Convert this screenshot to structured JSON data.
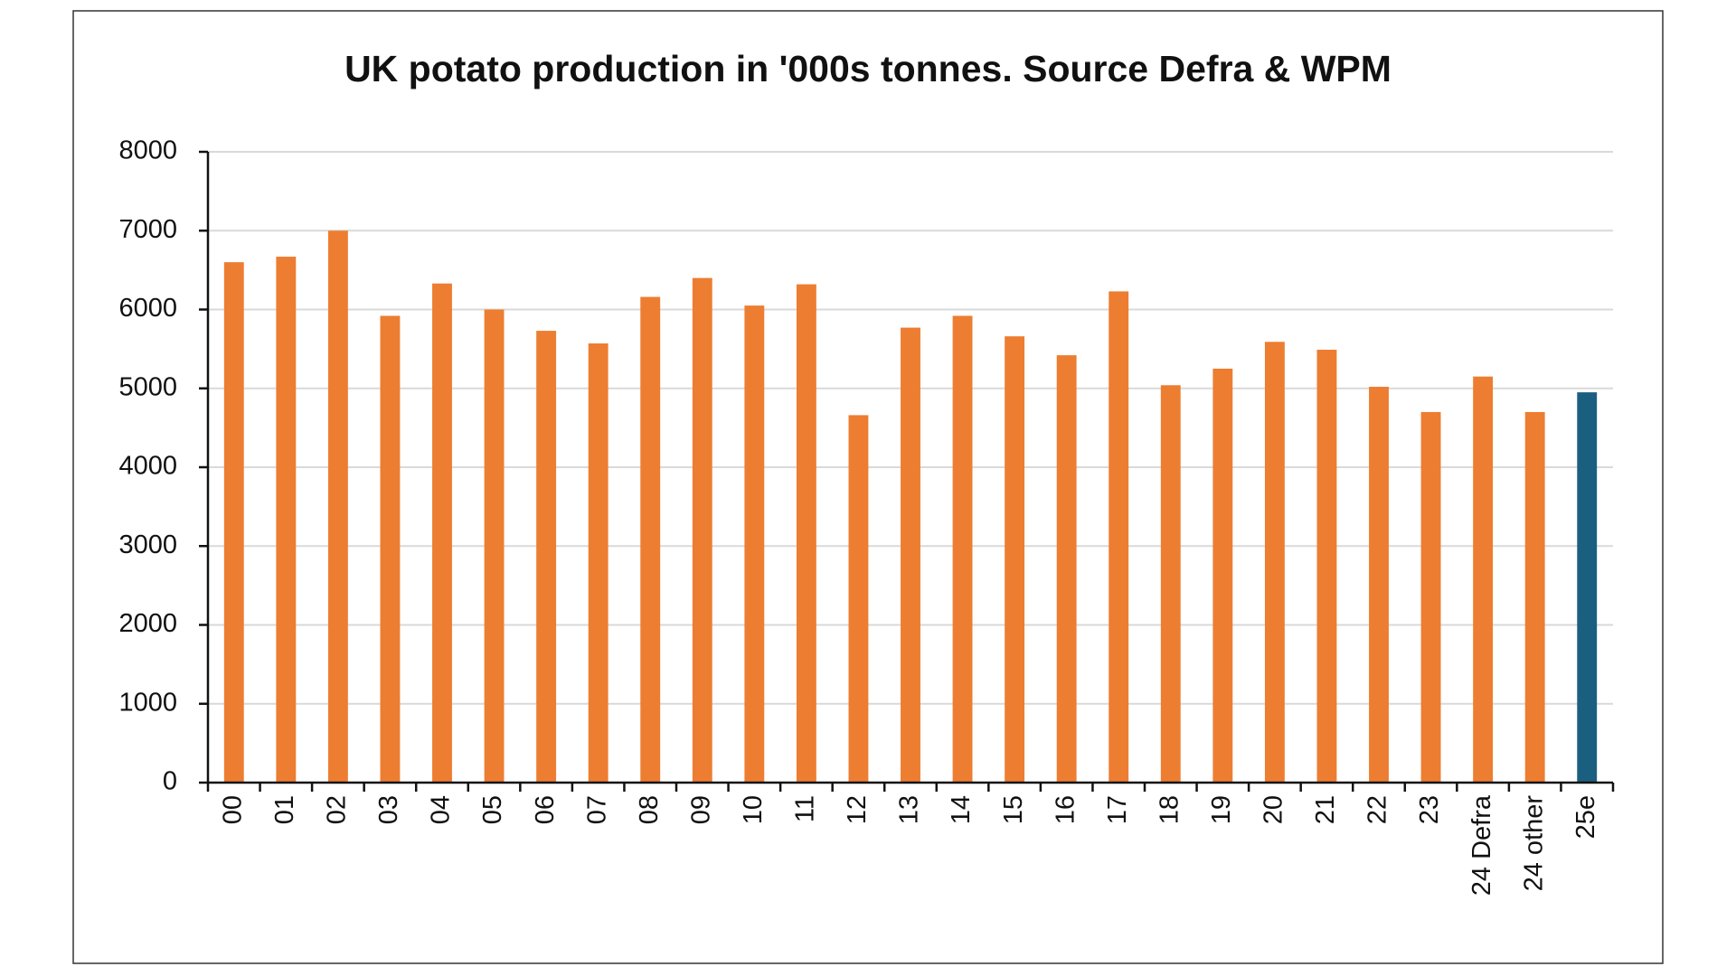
{
  "chart_data": {
    "type": "bar",
    "title": "UK potato production in '000s tonnes. Source Defra & WPM",
    "categories": [
      "00",
      "01",
      "02",
      "03",
      "04",
      "05",
      "06",
      "07",
      "08",
      "09",
      "10",
      "11",
      "12",
      "13",
      "14",
      "15",
      "16",
      "17",
      "18",
      "19",
      "20",
      "21",
      "22",
      "23",
      "24 Defra",
      "24 other",
      "25e"
    ],
    "values": [
      6600,
      6670,
      7000,
      5920,
      6330,
      6000,
      5730,
      5570,
      6160,
      6400,
      6050,
      6320,
      4660,
      5770,
      5920,
      5660,
      5420,
      6230,
      5040,
      5250,
      5590,
      5490,
      5020,
      4700,
      5150,
      4700,
      4950
    ],
    "colors": [
      "#ED7D31",
      "#ED7D31",
      "#ED7D31",
      "#ED7D31",
      "#ED7D31",
      "#ED7D31",
      "#ED7D31",
      "#ED7D31",
      "#ED7D31",
      "#ED7D31",
      "#ED7D31",
      "#ED7D31",
      "#ED7D31",
      "#ED7D31",
      "#ED7D31",
      "#ED7D31",
      "#ED7D31",
      "#ED7D31",
      "#ED7D31",
      "#ED7D31",
      "#ED7D31",
      "#ED7D31",
      "#ED7D31",
      "#ED7D31",
      "#ED7D31",
      "#ED7D31",
      "#1B5F80"
    ],
    "ylim": [
      0,
      8000
    ],
    "yticks": [
      0,
      1000,
      2000,
      3000,
      4000,
      5000,
      6000,
      7000,
      8000
    ],
    "grid": true
  }
}
